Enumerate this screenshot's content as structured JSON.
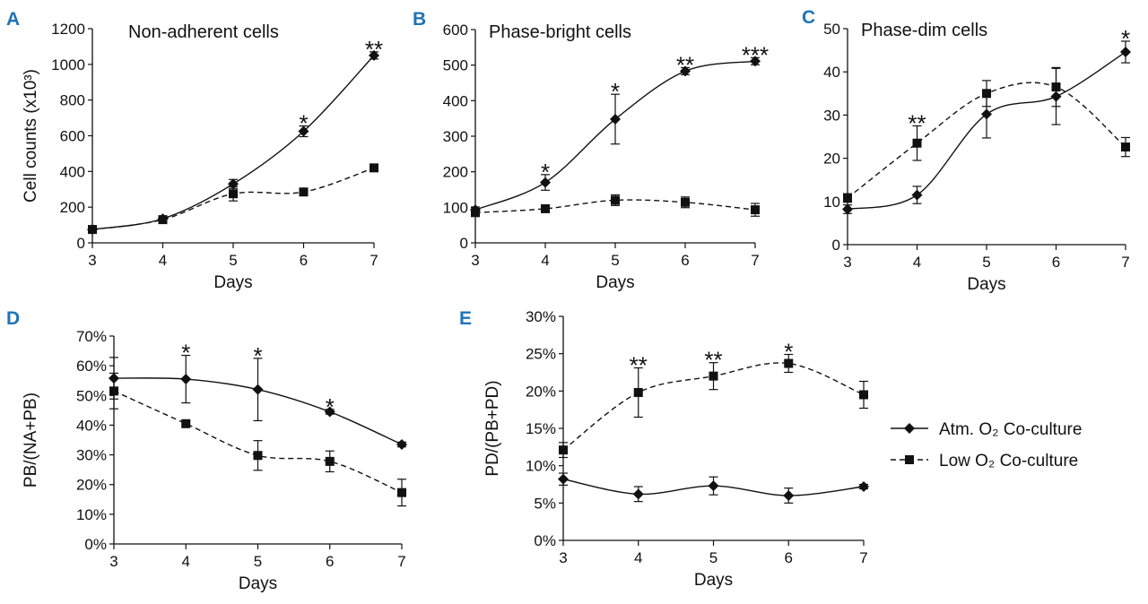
{
  "colors": {
    "panel_label": "#1f74b8",
    "series": "#111111"
  },
  "legend": {
    "atm_label": "Atm. O₂ Co-culture",
    "low_label": "Low O₂ Co-culture"
  },
  "chart_data": [
    {
      "panel": "A",
      "type": "line",
      "title": "Non-adherent cells",
      "xlabel": "Days",
      "ylabel": "Cell counts (x10³)",
      "x": [
        3,
        4,
        5,
        6,
        7
      ],
      "xlim": [
        3,
        7
      ],
      "ylim": [
        0,
        1200
      ],
      "yticks": [
        0,
        200,
        400,
        600,
        800,
        1000,
        1200
      ],
      "ytick_labels": [
        "0",
        "200",
        "400",
        "600",
        "800",
        "1000",
        "1200"
      ],
      "series": [
        {
          "name": "Atm. O₂ Co-culture",
          "marker": "diamond",
          "dash": "solid",
          "values": [
            75,
            135,
            330,
            625,
            1050
          ],
          "errors": [
            10,
            12,
            25,
            30,
            20
          ]
        },
        {
          "name": "Low O₂ Co-culture",
          "marker": "square",
          "dash": "dashed",
          "values": [
            75,
            130,
            275,
            285,
            420
          ],
          "errors": [
            10,
            12,
            40,
            12,
            10
          ]
        }
      ],
      "annotations": [
        {
          "x": 6,
          "text": "*"
        },
        {
          "x": 7,
          "text": "**"
        }
      ]
    },
    {
      "panel": "B",
      "type": "line",
      "title": "Phase-bright cells",
      "xlabel": "Days",
      "ylabel": "",
      "x": [
        3,
        4,
        5,
        6,
        7
      ],
      "xlim": [
        3,
        7
      ],
      "ylim": [
        0,
        600
      ],
      "yticks": [
        0,
        100,
        200,
        300,
        400,
        500,
        600
      ],
      "ytick_labels": [
        "0",
        "100",
        "200",
        "300",
        "400",
        "500",
        "600"
      ],
      "series": [
        {
          "name": "Atm. O₂ Co-culture",
          "marker": "diamond",
          "dash": "solid",
          "values": [
            93,
            170,
            348,
            483,
            511
          ],
          "errors": [
            8,
            22,
            70,
            10,
            10
          ]
        },
        {
          "name": "Low O₂ Co-culture",
          "marker": "square",
          "dash": "dashed",
          "values": [
            85,
            96,
            120,
            114,
            93
          ],
          "errors": [
            6,
            8,
            15,
            15,
            18
          ]
        }
      ],
      "annotations": [
        {
          "x": 4,
          "text": "*"
        },
        {
          "x": 5,
          "text": "*"
        },
        {
          "x": 6,
          "text": "**"
        },
        {
          "x": 7,
          "text": "***"
        }
      ]
    },
    {
      "panel": "C",
      "type": "line",
      "title": "Phase-dim cells",
      "xlabel": "Days",
      "ylabel": "",
      "x": [
        3,
        4,
        5,
        6,
        7
      ],
      "xlim": [
        3,
        7
      ],
      "ylim": [
        0,
        50
      ],
      "yticks": [
        0,
        10,
        20,
        30,
        40,
        50
      ],
      "ytick_labels": [
        "0",
        "10",
        "20",
        "30",
        "40",
        "50"
      ],
      "series": [
        {
          "name": "Atm. O₂ Co-culture",
          "marker": "diamond",
          "dash": "solid",
          "values": [
            8.2,
            11.5,
            30.2,
            34.3,
            44.6
          ],
          "errors": [
            1,
            2,
            5.5,
            6.5,
            2.5
          ]
        },
        {
          "name": "Low O₂ Co-culture",
          "marker": "square",
          "dash": "dashed",
          "values": [
            10.8,
            23.5,
            35,
            36.5,
            22.6
          ],
          "errors": [
            1,
            4,
            3,
            4.5,
            2.2
          ]
        }
      ],
      "annotations": [
        {
          "x": 4,
          "text": "**"
        },
        {
          "x": 7,
          "text": "*"
        }
      ]
    },
    {
      "panel": "D",
      "type": "line",
      "title": "",
      "xlabel": "Days",
      "ylabel": "PB/(NA+PB)",
      "x": [
        3,
        4,
        5,
        6,
        7
      ],
      "xlim": [
        3,
        7
      ],
      "ylim": [
        0,
        70
      ],
      "yticks": [
        0,
        10,
        20,
        30,
        40,
        50,
        60,
        70
      ],
      "ytick_labels": [
        "0%",
        "10%",
        "20%",
        "30%",
        "40%",
        "50%",
        "60%",
        "70%"
      ],
      "series": [
        {
          "name": "Atm. O₂ Co-culture",
          "marker": "diamond",
          "dash": "solid",
          "values": [
            55.8,
            55.5,
            52,
            44.5,
            33.5
          ],
          "errors": [
            7,
            8,
            10.5,
            0.8,
            0.8
          ]
        },
        {
          "name": "Low O₂ Co-culture",
          "marker": "square",
          "dash": "dashed",
          "values": [
            51.5,
            40.5,
            29.8,
            27.8,
            17.3
          ],
          "errors": [
            6,
            0.8,
            5,
            3.5,
            4.5
          ]
        }
      ],
      "annotations": [
        {
          "x": 4,
          "text": "*"
        },
        {
          "x": 5,
          "text": "*"
        },
        {
          "x": 6,
          "text": "*"
        }
      ]
    },
    {
      "panel": "E",
      "type": "line",
      "title": "",
      "xlabel": "Days",
      "ylabel": "PD/(PB+PD)",
      "x": [
        3,
        4,
        5,
        6,
        7
      ],
      "xlim": [
        3,
        7
      ],
      "ylim": [
        0,
        30
      ],
      "yticks": [
        0,
        5,
        10,
        15,
        20,
        25,
        30
      ],
      "ytick_labels": [
        "0%",
        "5%",
        "10%",
        "15%",
        "20%",
        "25%",
        "30%"
      ],
      "series": [
        {
          "name": "Atm. O₂ Co-culture",
          "marker": "diamond",
          "dash": "solid",
          "values": [
            8.2,
            6.2,
            7.3,
            6,
            7.2
          ],
          "errors": [
            0.8,
            1,
            1.2,
            1,
            0.3
          ]
        },
        {
          "name": "Low O₂ Co-culture",
          "marker": "square",
          "dash": "dashed",
          "values": [
            12.1,
            19.8,
            22,
            23.7,
            19.5
          ],
          "errors": [
            1,
            3.3,
            1.8,
            1.2,
            1.8
          ]
        }
      ],
      "annotations": [
        {
          "x": 4,
          "text": "**"
        },
        {
          "x": 5,
          "text": "**"
        },
        {
          "x": 6,
          "text": "*"
        }
      ]
    }
  ]
}
